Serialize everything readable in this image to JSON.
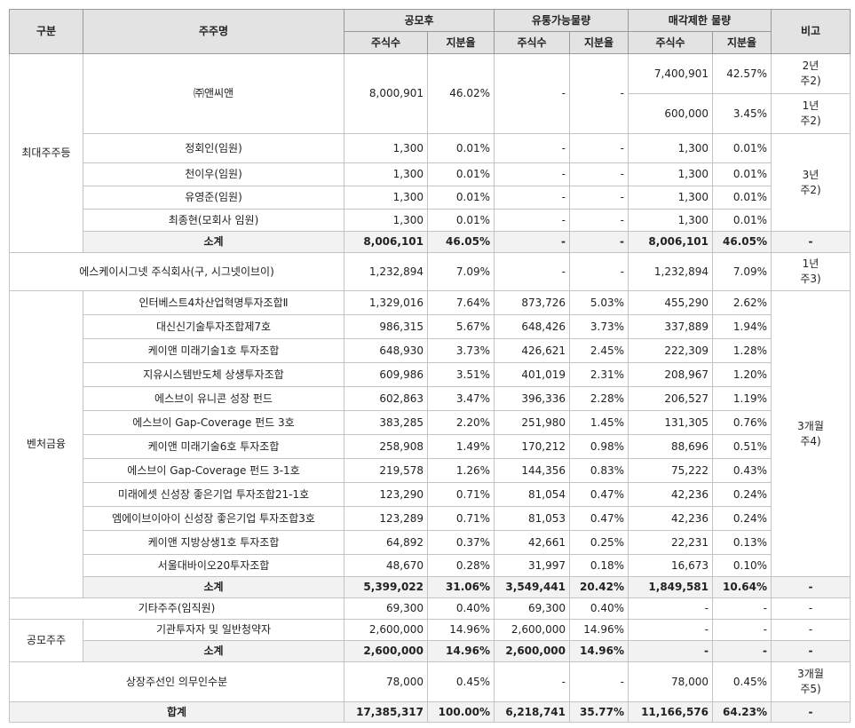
{
  "header": {
    "category": "구분",
    "name": "주주명",
    "groups": [
      "공모후",
      "유통가능물량",
      "매각제한 물량"
    ],
    "subheaders": [
      [
        "주식수",
        "지분율"
      ],
      [
        "주식수",
        "지분율"
      ],
      [
        "주식수",
        "지분율"
      ]
    ],
    "note": "비고"
  },
  "rows": [
    [
      "최대주주등",
      "㈜앤씨앤",
      "8,000,901",
      "46.02%",
      "-",
      "-",
      "7,400,901",
      "42.57%",
      "2년\n주2)"
    ],
    [
      "600,000",
      "3.45%",
      "1년\n주2)"
    ],
    [
      "정회인(임원)",
      "1,300",
      "0.01%",
      "-",
      "-",
      "1,300",
      "0.01%",
      "3년\n주2)"
    ],
    [
      "천이우(임원)",
      "1,300",
      "0.01%",
      "-",
      "-",
      "1,300",
      "0.01%"
    ],
    [
      "유영준(임원)",
      "1,300",
      "0.01%",
      "-",
      "-",
      "1,300",
      "0.01%"
    ],
    [
      "최종현(모회사 임원)",
      "1,300",
      "0.01%",
      "-",
      "-",
      "1,300",
      "0.01%"
    ],
    [
      "소계",
      "8,006,101",
      "46.05%",
      "-",
      "-",
      "8,006,101",
      "46.05%",
      "-"
    ],
    [
      "에스케이시그넷 주식회사(구, 시그넷이브이)",
      "1,232,894",
      "7.09%",
      "-",
      "-",
      "1,232,894",
      "7.09%",
      "1년\n주3)"
    ],
    [
      "벤처금융",
      "인터베스트4차산업혁명투자조합Ⅱ",
      "1,329,016",
      "7.64%",
      "873,726",
      "5.03%",
      "455,290",
      "2.62%",
      "3개월\n주4)"
    ],
    [
      "대신신기술투자조합제7호",
      "986,315",
      "5.67%",
      "648,426",
      "3.73%",
      "337,889",
      "1.94%"
    ],
    [
      "케이앤 미래기술1호 투자조합",
      "648,930",
      "3.73%",
      "426,621",
      "2.45%",
      "222,309",
      "1.28%"
    ],
    [
      "지유시스템반도체 상생투자조합",
      "609,986",
      "3.51%",
      "401,019",
      "2.31%",
      "208,967",
      "1.20%"
    ],
    [
      "에스브이 유니콘 성장 펀드",
      "602,863",
      "3.47%",
      "396,336",
      "2.28%",
      "206,527",
      "1.19%"
    ],
    [
      "에스브이 Gap-Coverage 펀드 3호",
      "383,285",
      "2.20%",
      "251,980",
      "1.45%",
      "131,305",
      "0.76%"
    ],
    [
      "케이앤 미래기술6호 투자조합",
      "258,908",
      "1.49%",
      "170,212",
      "0.98%",
      "88,696",
      "0.51%"
    ],
    [
      "에스브이 Gap-Coverage 펀드 3-1호",
      "219,578",
      "1.26%",
      "144,356",
      "0.83%",
      "75,222",
      "0.43%"
    ],
    [
      "미래에셋 신성장 좋은기업 투자조합21-1호",
      "123,290",
      "0.71%",
      "81,054",
      "0.47%",
      "42,236",
      "0.24%"
    ],
    [
      "엠에이브이아이 신성장 좋은기업 투자조합3호",
      "123,289",
      "0.71%",
      "81,053",
      "0.47%",
      "42,236",
      "0.24%"
    ],
    [
      "케이앤 지방상생1호 투자조합",
      "64,892",
      "0.37%",
      "42,661",
      "0.25%",
      "22,231",
      "0.13%"
    ],
    [
      "서울대바이오20투자조합",
      "48,670",
      "0.28%",
      "31,997",
      "0.18%",
      "16,673",
      "0.10%"
    ],
    [
      "소계",
      "5,399,022",
      "31.06%",
      "3,549,441",
      "20.42%",
      "1,849,581",
      "10.64%",
      "-"
    ],
    [
      "기타주주(임직원)",
      "69,300",
      "0.40%",
      "69,300",
      "0.40%",
      "-",
      "-",
      "-"
    ],
    [
      "공모주주",
      "기관투자자 및 일반청약자",
      "2,600,000",
      "14.96%",
      "2,600,000",
      "14.96%",
      "-",
      "-",
      "-"
    ],
    [
      "소계",
      "2,600,000",
      "14.96%",
      "2,600,000",
      "14.96%",
      "-",
      "-",
      "-"
    ],
    [
      "상장주선인 의무인수분",
      "78,000",
      "0.45%",
      "-",
      "-",
      "78,000",
      "0.45%",
      "3개월\n주5)"
    ],
    [
      "합계",
      "17,385,317",
      "100.00%",
      "6,218,741",
      "35.77%",
      "11,166,576",
      "64.23%",
      "-"
    ]
  ]
}
